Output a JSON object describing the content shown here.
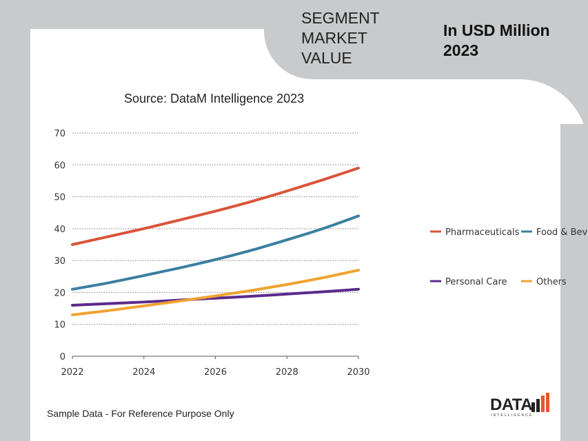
{
  "header": {
    "segment_title": "SEGMENT\nMARKET\nVALUE",
    "unit_title": "In USD Million\n2023"
  },
  "footer": {
    "note": "Sample Data - For Reference Purpose Only",
    "logo_text": "DATA",
    "logo_sub": "INTELLIGENCE"
  },
  "chart_data": {
    "type": "line",
    "title": "Source: DataM Intelligence 2023",
    "xlabel": "",
    "ylabel": "",
    "x": [
      2022,
      2023,
      2024,
      2025,
      2026,
      2027,
      2028,
      2029,
      2030
    ],
    "x_ticks": [
      "2022",
      "2024",
      "2026",
      "2028",
      "2030"
    ],
    "y_ticks": [
      "0",
      "10",
      "20",
      "30",
      "40",
      "50",
      "60",
      "70"
    ],
    "ylim": [
      0,
      70
    ],
    "xlim": [
      2022,
      2030
    ],
    "grid": "horizontal-dotted",
    "legend_position": "right",
    "series": [
      {
        "name": "Pharmaceuticals",
        "color": "#d9543a",
        "values": [
          35,
          37.5,
          40,
          42.7,
          45.5,
          48.5,
          51.8,
          55.3,
          59
        ]
      },
      {
        "name": "Food & Beverages",
        "color": "#3a7fa0",
        "values": [
          21,
          23,
          25.3,
          27.7,
          30.3,
          33.2,
          36.5,
          40,
          44
        ]
      },
      {
        "name": "Personal Care",
        "color": "#5b2a8c",
        "values": [
          16,
          16.5,
          17,
          17.6,
          18.2,
          18.8,
          19.5,
          20.2,
          21
        ]
      },
      {
        "name": "Others",
        "color": "#f0a330",
        "values": [
          13,
          14.3,
          15.8,
          17.3,
          18.9,
          20.6,
          22.5,
          24.6,
          27
        ]
      }
    ]
  }
}
